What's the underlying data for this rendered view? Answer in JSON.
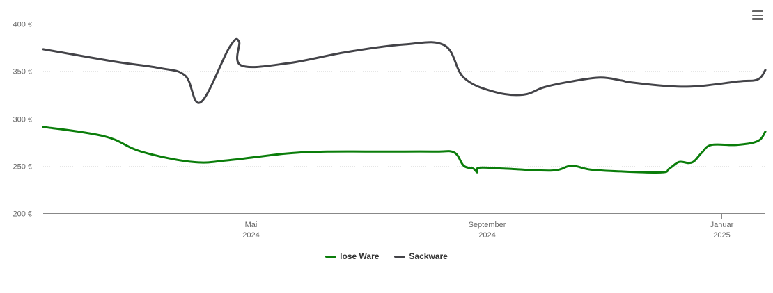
{
  "chart_data": {
    "type": "line",
    "y_unit_suffix": " €",
    "ylim": [
      200,
      400
    ],
    "yticks": [
      200,
      250,
      300,
      350,
      400
    ],
    "ytick_labels": [
      "200 €",
      "250 €",
      "300 €",
      "350 €",
      "400 €"
    ],
    "xlim": [
      "2024-01-14",
      "2025-01-24"
    ],
    "xticks": [
      {
        "date": "2024-05-01",
        "label_line1": "Mai",
        "label_line2": "2024"
      },
      {
        "date": "2024-09-01",
        "label_line1": "September",
        "label_line2": "2024"
      },
      {
        "date": "2025-01-01",
        "label_line1": "Januar",
        "label_line2": "2025"
      }
    ],
    "grid": true,
    "legend_position": "bottom-center",
    "series": [
      {
        "name": "lose Ware",
        "color": "#0a7d0a",
        "points": [
          [
            "2024-01-14",
            291
          ],
          [
            "2024-02-15",
            281
          ],
          [
            "2024-03-05",
            265
          ],
          [
            "2024-04-01",
            254
          ],
          [
            "2024-04-20",
            256
          ],
          [
            "2024-05-20",
            263
          ],
          [
            "2024-06-10",
            265
          ],
          [
            "2024-07-10",
            265
          ],
          [
            "2024-08-05",
            265
          ],
          [
            "2024-08-15",
            264
          ],
          [
            "2024-08-20",
            250
          ],
          [
            "2024-08-25",
            247
          ],
          [
            "2024-08-27",
            243
          ],
          [
            "2024-08-28",
            248
          ],
          [
            "2024-09-10",
            247
          ],
          [
            "2024-10-05",
            245
          ],
          [
            "2024-10-15",
            250
          ],
          [
            "2024-10-25",
            246
          ],
          [
            "2024-11-10",
            244
          ],
          [
            "2024-12-01",
            243
          ],
          [
            "2024-12-05",
            247
          ],
          [
            "2024-12-10",
            254
          ],
          [
            "2024-12-15",
            253
          ],
          [
            "2024-12-18",
            255
          ],
          [
            "2024-12-22",
            264
          ],
          [
            "2024-12-27",
            272
          ],
          [
            "2025-01-09",
            272
          ],
          [
            "2025-01-20",
            276
          ],
          [
            "2025-01-24",
            286
          ]
        ]
      },
      {
        "name": "Sackware",
        "color": "#434348",
        "points": [
          [
            "2024-01-14",
            373
          ],
          [
            "2024-02-20",
            360
          ],
          [
            "2024-03-15",
            353
          ],
          [
            "2024-03-28",
            345
          ],
          [
            "2024-04-05",
            317
          ],
          [
            "2024-04-20",
            375
          ],
          [
            "2024-04-25",
            381
          ],
          [
            "2024-04-26",
            356
          ],
          [
            "2024-05-20",
            358
          ],
          [
            "2024-06-20",
            370
          ],
          [
            "2024-07-20",
            378
          ],
          [
            "2024-08-10",
            377
          ],
          [
            "2024-08-20",
            343
          ],
          [
            "2024-09-05",
            328
          ],
          [
            "2024-09-20",
            325
          ],
          [
            "2024-10-01",
            333
          ],
          [
            "2024-10-15",
            339
          ],
          [
            "2024-10-30",
            343
          ],
          [
            "2024-11-10",
            340
          ],
          [
            "2024-11-15",
            338
          ],
          [
            "2024-12-05",
            334
          ],
          [
            "2024-12-20",
            334
          ],
          [
            "2025-01-10",
            339
          ],
          [
            "2025-01-20",
            341
          ],
          [
            "2025-01-24",
            351
          ]
        ]
      }
    ]
  }
}
